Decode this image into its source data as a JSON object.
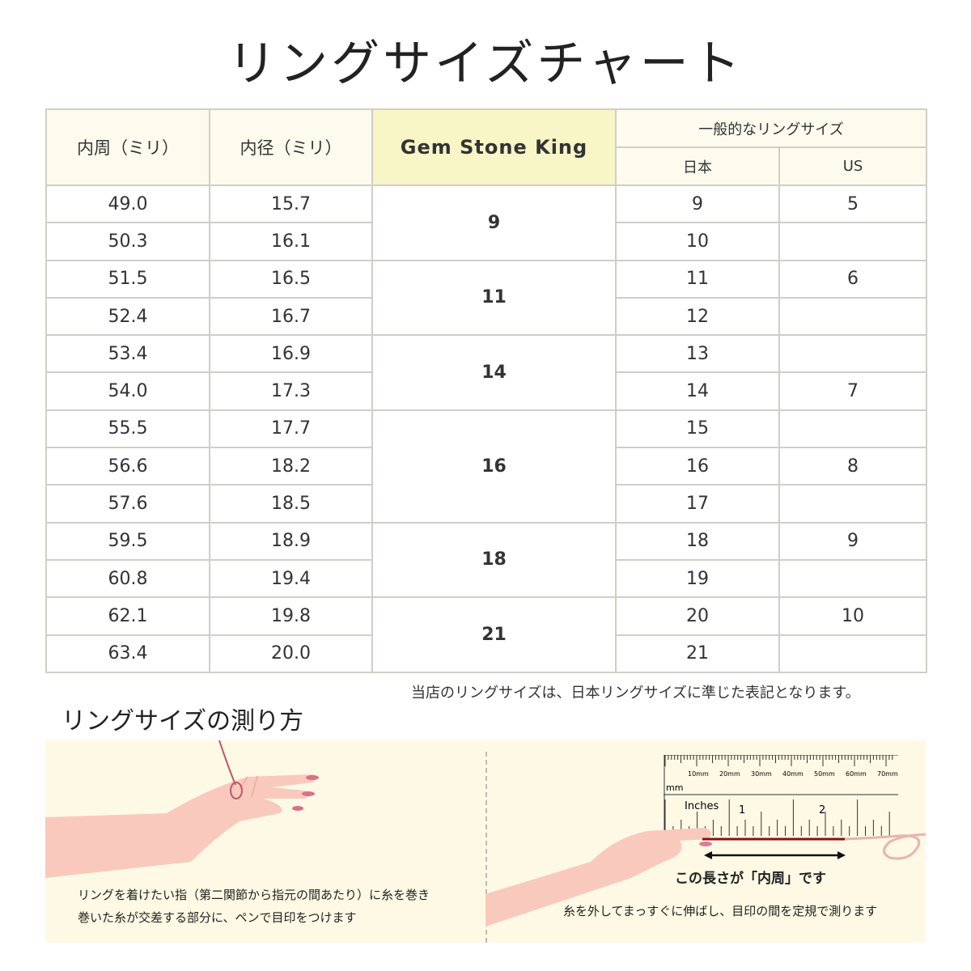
{
  "title": "リングサイズチャート",
  "table": {
    "headers": {
      "inner_circ": "内周（ミリ）",
      "inner_diam": "内径（ミリ）",
      "brand": "Gem Stone King",
      "general": "一般的なリングサイズ",
      "japan": "日本",
      "us": "US"
    },
    "rows": [
      {
        "circ": "49.0",
        "diam": "15.7",
        "jp": "9",
        "us": "5"
      },
      {
        "circ": "50.3",
        "diam": "16.1",
        "jp": "10",
        "us": ""
      },
      {
        "circ": "51.5",
        "diam": "16.5",
        "jp": "11",
        "us": "6"
      },
      {
        "circ": "52.4",
        "diam": "16.7",
        "jp": "12",
        "us": ""
      },
      {
        "circ": "53.4",
        "diam": "16.9",
        "jp": "13",
        "us": ""
      },
      {
        "circ": "54.0",
        "diam": "17.3",
        "jp": "14",
        "us": "7"
      },
      {
        "circ": "55.5",
        "diam": "17.7",
        "jp": "15",
        "us": ""
      },
      {
        "circ": "56.6",
        "diam": "18.2",
        "jp": "16",
        "us": "8"
      },
      {
        "circ": "57.6",
        "diam": "18.5",
        "jp": "17",
        "us": ""
      },
      {
        "circ": "59.5",
        "diam": "18.9",
        "jp": "18",
        "us": "9"
      },
      {
        "circ": "60.8",
        "diam": "19.4",
        "jp": "19",
        "us": ""
      },
      {
        "circ": "62.1",
        "diam": "19.8",
        "jp": "20",
        "us": "10"
      },
      {
        "circ": "63.4",
        "diam": "20.0",
        "jp": "21",
        "us": ""
      }
    ],
    "gem_groups": [
      {
        "size": "9",
        "span": 2
      },
      {
        "size": "11",
        "span": 2
      },
      {
        "size": "14",
        "span": 2
      },
      {
        "size": "16",
        "span": 3
      },
      {
        "size": "18",
        "span": 2
      },
      {
        "size": "21",
        "span": 2
      }
    ]
  },
  "note": "当店のリングサイズは、日本リングサイズに準じた表記となります。",
  "howto": {
    "title": "リングサイズの測り方",
    "step1_line1": "リングを着けたい指（第二関節から指元の間あたり）に糸を巻き",
    "step1_line2": "巻いた糸が交差する部分に、ペンで目印をつけます",
    "length_label": "この長さが「内周」です",
    "step2": "糸を外してまっすぐに伸ばし、目印の間を定規で測ります",
    "ruler": {
      "mm_unit": "mm",
      "inch_unit": "Inches",
      "mm_ticks": [
        "10mm",
        "20mm",
        "30mm",
        "40mm",
        "50mm",
        "60mm",
        "70mm"
      ],
      "inch_ticks": [
        "1",
        "2"
      ]
    }
  },
  "colors": {
    "header_bg": "#fdfbee",
    "brand_bg": "#f8f5c6",
    "panel_bg": "#fdf9e4",
    "thread": "#8b0f14",
    "skin": "#f9c9bd"
  }
}
